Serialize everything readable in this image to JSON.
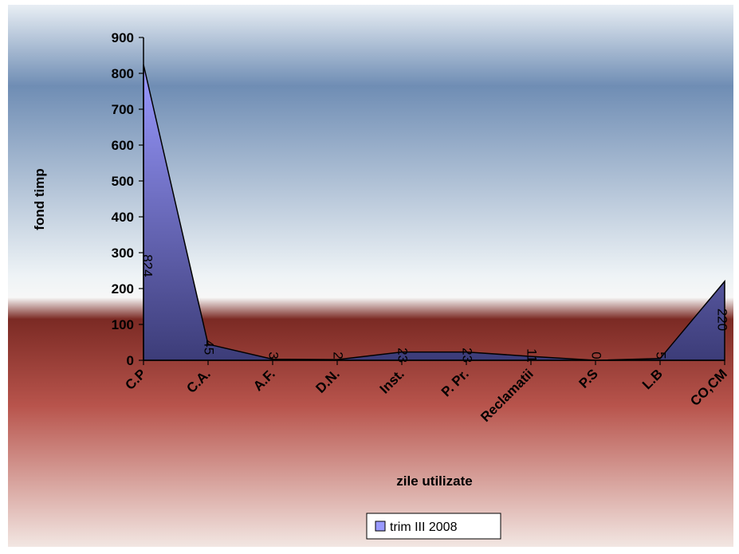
{
  "chart_data": {
    "type": "area",
    "title": "",
    "xlabel": "zile utilizate",
    "ylabel": "fond timp",
    "categories": [
      "C.P",
      "C.A.",
      "A.F.",
      "D.N.",
      "Inst.",
      "P. Pr.",
      "Reclamatii",
      "P.S",
      "L.B",
      "CO,CM"
    ],
    "series": [
      {
        "name": "trim III 2008",
        "values": [
          824,
          45,
          3,
          2,
          23,
          23,
          11,
          0,
          5,
          220
        ]
      }
    ],
    "data_labels": [
      "824",
      "45",
      "3",
      "2",
      "23",
      "23",
      "11",
      "0",
      "5",
      "220"
    ],
    "ylim": [
      0,
      900
    ],
    "yticks": [
      "0",
      "100",
      "200",
      "300",
      "400",
      "500",
      "600",
      "700",
      "800",
      "900"
    ],
    "grid": false,
    "legend_position": "bottom",
    "colors": {
      "area_fill_top": "#9999ff",
      "area_fill_bottom": "#3c3c78",
      "line": "#000000",
      "bg_top": "#e8eef4",
      "bg_blue": "#6f8db4",
      "bg_light": "#eef3f6",
      "bg_red": "#7b2a24",
      "bg_bottom": "#f2e6e2"
    }
  }
}
